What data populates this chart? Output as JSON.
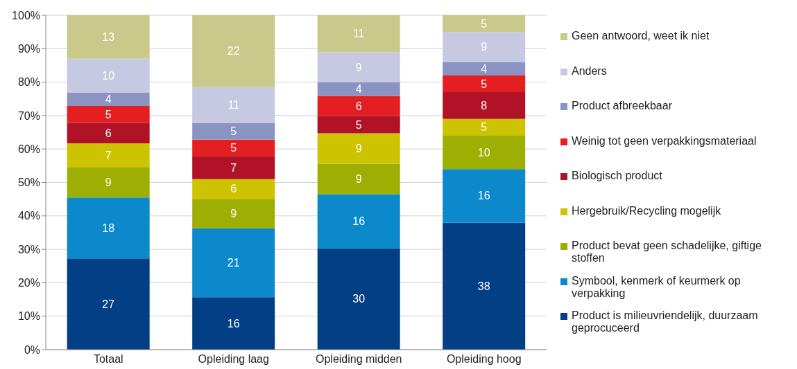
{
  "chart_data": {
    "type": "bar",
    "stacked": true,
    "categories": [
      "Totaal",
      "Opleiding laag",
      "Opleiding midden",
      "Opleiding hoog"
    ],
    "series": [
      {
        "name": "Product is milieuvriendelijk, duurzaam geprocuceerd",
        "color": "#033f85",
        "values": [
          27.3,
          15.7,
          30.3,
          38
        ],
        "value_labels": [
          "27",
          "16",
          "30",
          "38"
        ]
      },
      {
        "name": "Symbool, kenmerk of keurmerk op verpakking",
        "color": "#0b89ca",
        "values": [
          18.2,
          20.6,
          16.2,
          16
        ],
        "value_labels": [
          "18",
          "21",
          "16",
          "16"
        ]
      },
      {
        "name": "Product bevat geen schadelijke, giftige stoffen",
        "color": "#9caf02",
        "values": [
          9.1,
          8.8,
          9.1,
          10
        ],
        "value_labels": [
          "9",
          "9",
          "9",
          "10"
        ]
      },
      {
        "name": "Hergebruik/Recycling mogelijk",
        "color": "#cdc300",
        "values": [
          7.1,
          5.9,
          9.1,
          5
        ],
        "value_labels": [
          "7",
          "6",
          "9",
          "5"
        ]
      },
      {
        "name": "Biologisch product",
        "color": "#b11227",
        "values": [
          6.1,
          6.9,
          5.1,
          8
        ],
        "value_labels": [
          "6",
          "7",
          "5",
          "8"
        ]
      },
      {
        "name": "Weinig tot geen verpakkingsmateriaal",
        "color": "#e41f22",
        "values": [
          5.1,
          4.9,
          6.1,
          5
        ],
        "value_labels": [
          "5",
          "5",
          "6",
          "5"
        ]
      },
      {
        "name": "Product afbreekbaar",
        "color": "#8a93c1",
        "values": [
          4.0,
          4.9,
          4.0,
          4
        ],
        "value_labels": [
          "4",
          "5",
          "4",
          "4"
        ]
      },
      {
        "name": "Anders",
        "color": "#c6c9e1",
        "values": [
          10.1,
          10.8,
          9.1,
          9
        ],
        "value_labels": [
          "10",
          "11",
          "9",
          "9"
        ]
      },
      {
        "name": "Geen antwoord, weet ik niet",
        "color": "#c9c98b",
        "values": [
          13.0,
          21.5,
          11.0,
          5
        ],
        "value_labels": [
          "13",
          "22",
          "11",
          "5"
        ]
      }
    ],
    "ylim": [
      0,
      100
    ],
    "yticks": [
      {
        "value": 0,
        "label": "0%"
      },
      {
        "value": 10,
        "label": "10%"
      },
      {
        "value": 20,
        "label": "20%"
      },
      {
        "value": 30,
        "label": "30%"
      },
      {
        "value": 40,
        "label": "40%"
      },
      {
        "value": 50,
        "label": "50%"
      },
      {
        "value": 60,
        "label": "60%"
      },
      {
        "value": 70,
        "label": "70%"
      },
      {
        "value": 80,
        "label": "80%"
      },
      {
        "value": 90,
        "label": "90%"
      },
      {
        "value": 100,
        "label": "100%"
      }
    ],
    "grid": "y",
    "legend": "right"
  }
}
